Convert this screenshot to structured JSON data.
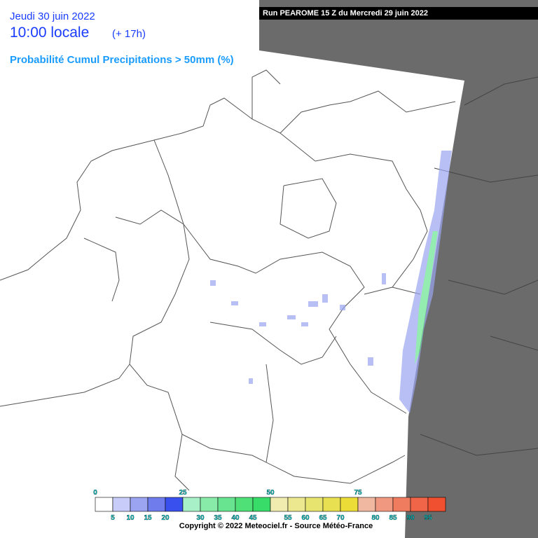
{
  "header": {
    "date": "Jeudi 30 juin 2022",
    "time": "10:00 locale",
    "offset": "(+ 17h)",
    "run": "Run PEAROME 15 Z du Mercredi 29 juin 2022",
    "title": "Probabilité Cumul Precipitations > 50mm (%)"
  },
  "legend": {
    "top_labels": [
      0,
      25,
      50,
      75
    ],
    "bottom_labels": [
      5,
      10,
      15,
      20,
      30,
      35,
      40,
      45,
      55,
      60,
      65,
      70,
      80,
      85,
      90,
      95
    ],
    "colors": [
      "#ffffff",
      "#c8ccf8",
      "#9aa4f0",
      "#6e7cec",
      "#3a50ee",
      "#a8f0c8",
      "#88eca8",
      "#68e490",
      "#50e078",
      "#38dc68",
      "#f0ecb0",
      "#ece890",
      "#e8e470",
      "#e8e050",
      "#ecdc38",
      "#f0b8a0",
      "#f09880",
      "#f07c60",
      "#f06448",
      "#f05030"
    ]
  },
  "footer": {
    "copyright": "Copyright © 2022 Meteociel.fr - Source Météo-France"
  }
}
